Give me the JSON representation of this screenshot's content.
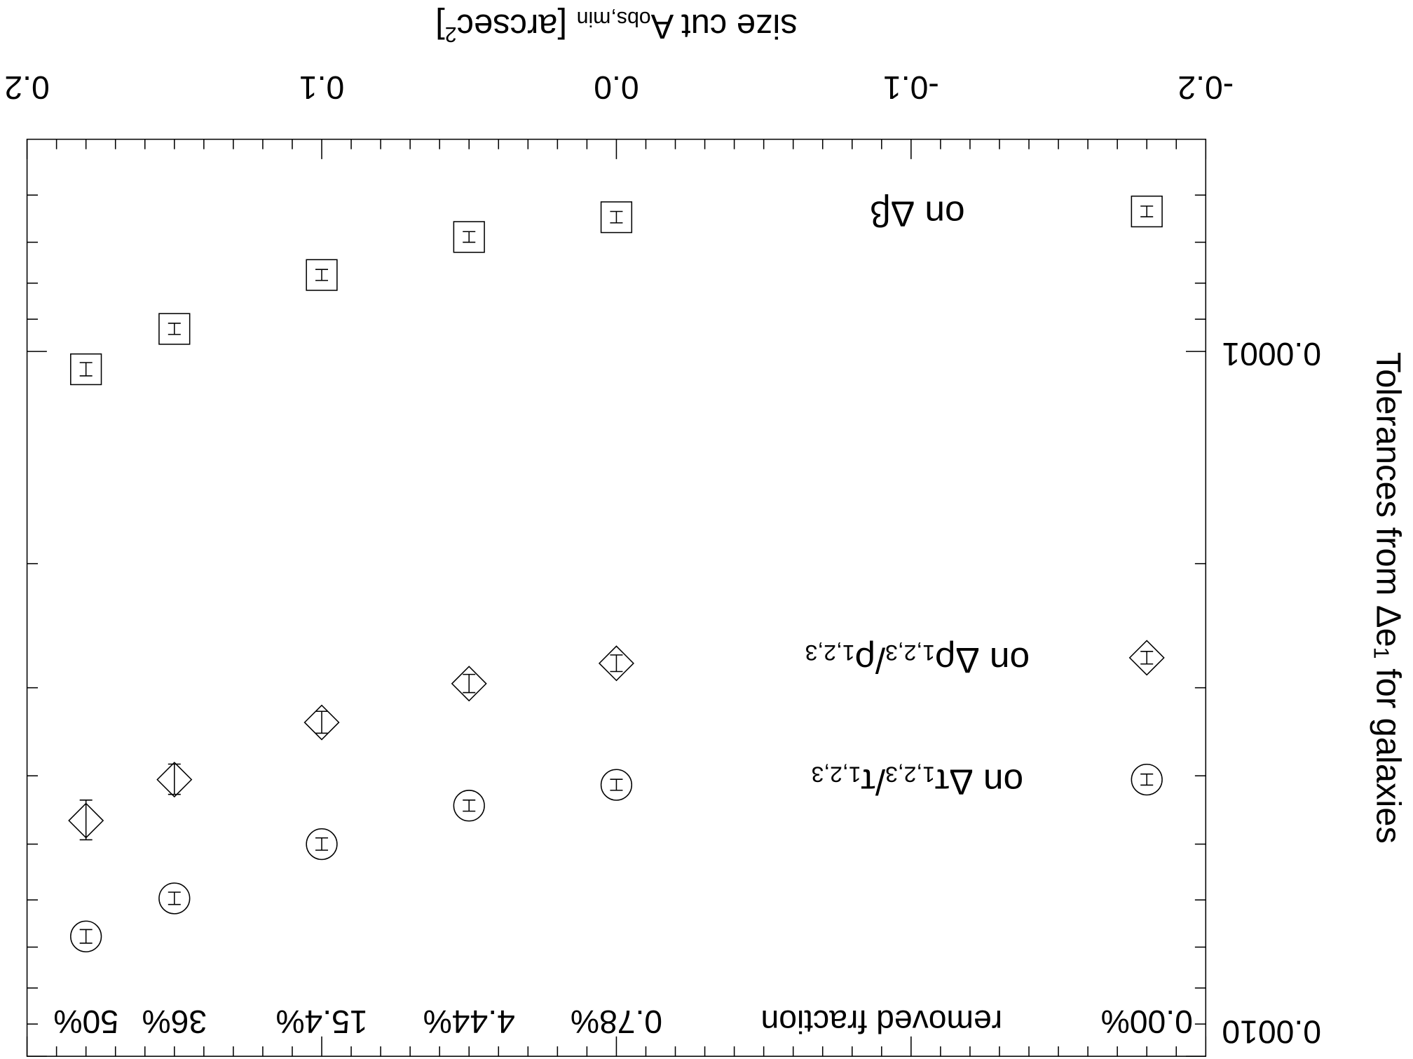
{
  "chart_data": {
    "type": "scatter",
    "xlabel": [
      "size cut A",
      "obs,min",
      " [arcsec",
      "2",
      "]"
    ],
    "ylabel": [
      "Tolerances from Δe",
      "1",
      " for galaxies"
    ],
    "xlim": [
      -0.2,
      0.2
    ],
    "xticks": [
      -0.2,
      -0.1,
      {
        "value": 0,
        "label": "0.0"
      },
      0.1,
      0.2
    ],
    "xminorticks": [
      -0.19,
      -0.18,
      -0.17,
      -0.16,
      -0.15,
      -0.14,
      -0.13,
      -0.12,
      -0.11,
      -0.09,
      -0.08,
      -0.07,
      -0.06,
      -0.05,
      -0.04,
      -0.03,
      -0.02,
      -0.01,
      0.01,
      0.02,
      0.03,
      0.04,
      0.05,
      0.06,
      0.07,
      0.08,
      0.09,
      0.11,
      0.12,
      0.13,
      0.14,
      0.15,
      0.16,
      0.17,
      0.18,
      0.19
    ],
    "ylim": [
      5e-05,
      0.001
    ],
    "yscale": "log",
    "yticks": [
      {
        "value": 0.0001,
        "label": "0.0001"
      },
      {
        "value": 0.001,
        "label": "0.0010"
      }
    ],
    "yminorticks": [
      6e-05,
      7e-05,
      8e-05,
      9e-05,
      0.0002,
      0.0003,
      0.0004,
      0.0005,
      0.0006,
      0.0007,
      0.0008,
      0.0009
    ],
    "x": [
      -0.18,
      0,
      0.05,
      0.1,
      0.15,
      0.18
    ],
    "fraction_title": "removed fraction",
    "fraction_labels": [
      "0.00%",
      "0.78%",
      "4.44%",
      "15.4%",
      "36%",
      "50%"
    ],
    "series": [
      {
        "name": [
          "on Δβ"
        ],
        "marker": "square",
        "color": "#000000",
        "values": [
          6.33e-05,
          6.45e-05,
          6.88e-05,
          7.79e-05,
          9.29e-05,
          0.000106
        ],
        "errors": [
          1.1e-06,
          1.2e-06,
          1.2e-06,
          1.4e-06,
          1.7e-06,
          2.3e-06
        ]
      },
      {
        "name": [
          "on Δρ",
          "1,2,3",
          "/ρ",
          "1,2,3"
        ],
        "marker": "diamond",
        "color": "#000000",
        "values": [
          0.000272,
          0.000277,
          0.000296,
          0.000336,
          0.000405,
          0.000463
        ],
        "errors": [
          5.6e-06,
          7.5e-06,
          8.8e-06,
          1.2e-05,
          2e-05,
          3e-05
        ]
      },
      {
        "name": [
          "on Δτ",
          "1,2,3",
          "/τ",
          "1,2,3"
        ],
        "marker": "circle",
        "color": "#000000",
        "values": [
          0.000405,
          0.000412,
          0.000441,
          0.0005,
          0.000597,
          0.000676
        ],
        "errors": [
          7.3e-06,
          7.4e-06,
          8e-06,
          1e-05,
          1.2e-05,
          1.5e-05
        ]
      }
    ]
  }
}
